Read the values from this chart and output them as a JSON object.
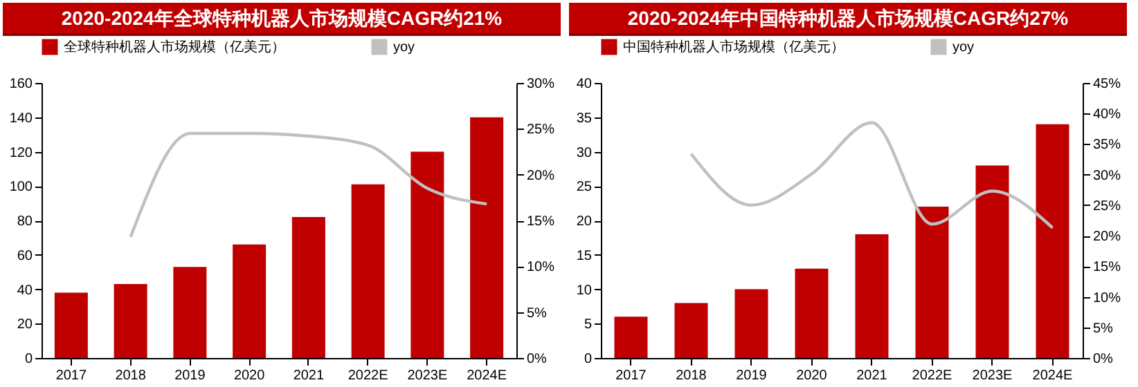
{
  "chart_data": [
    {
      "type": "bar",
      "title": "2020-2024年全球特种机器人市场规模CAGR约21%",
      "categories": [
        "2017",
        "2018",
        "2019",
        "2020",
        "2021",
        "2022E",
        "2023E",
        "2024E"
      ],
      "series": [
        {
          "name": "全球特种机器人市场规模（亿美元）",
          "color": "#c00000",
          "values": [
            38,
            43,
            53,
            66,
            82,
            101,
            120,
            140
          ]
        },
        {
          "name": "yoy",
          "type": "line",
          "axis": "y2",
          "color": "#c0c0c0",
          "values": [
            null,
            13.2,
            24.5,
            24.5,
            24.2,
            23.2,
            18.5,
            16.8
          ]
        }
      ],
      "ylim": [
        0,
        160
      ],
      "yticks": [
        0,
        20,
        40,
        60,
        80,
        100,
        120,
        140,
        160
      ],
      "y2lim": [
        0,
        30
      ],
      "y2ticks": [
        {
          "value": 0,
          "label": "0%"
        },
        {
          "value": 5,
          "label": "5%"
        },
        {
          "value": 10,
          "label": "10%"
        },
        {
          "value": 15,
          "label": "15%"
        },
        {
          "value": 20,
          "label": "20%"
        },
        {
          "value": 25,
          "label": "25%"
        },
        {
          "value": 30,
          "label": "30%"
        }
      ],
      "legend": "top",
      "grid": false
    },
    {
      "type": "bar",
      "title": "2020-2024年中国特种机器人市场规模CAGR约27%",
      "categories": [
        "2017",
        "2018",
        "2019",
        "2020",
        "2021",
        "2022E",
        "2023E",
        "2024E"
      ],
      "series": [
        {
          "name": "中国特种机器人市场规模（亿美元）",
          "color": "#c00000",
          "values": [
            6,
            8,
            10,
            13,
            18,
            22,
            28,
            34
          ]
        },
        {
          "name": "yoy",
          "type": "line",
          "axis": "y2",
          "color": "#c0c0c0",
          "values": [
            null,
            33.4,
            25.0,
            30.1,
            38.5,
            21.9,
            27.3,
            21.3
          ]
        }
      ],
      "ylim": [
        0,
        40
      ],
      "yticks": [
        0,
        5,
        10,
        15,
        20,
        25,
        30,
        35,
        40
      ],
      "y2lim": [
        0,
        45
      ],
      "y2ticks": [
        {
          "value": 0,
          "label": "0%"
        },
        {
          "value": 5,
          "label": "5%"
        },
        {
          "value": 10,
          "label": "10%"
        },
        {
          "value": 15,
          "label": "15%"
        },
        {
          "value": 20,
          "label": "20%"
        },
        {
          "value": 25,
          "label": "25%"
        },
        {
          "value": 30,
          "label": "30%"
        },
        {
          "value": 35,
          "label": "35%"
        },
        {
          "value": 40,
          "label": "40%"
        },
        {
          "value": 45,
          "label": "45%"
        }
      ],
      "legend": "top",
      "grid": false
    }
  ]
}
